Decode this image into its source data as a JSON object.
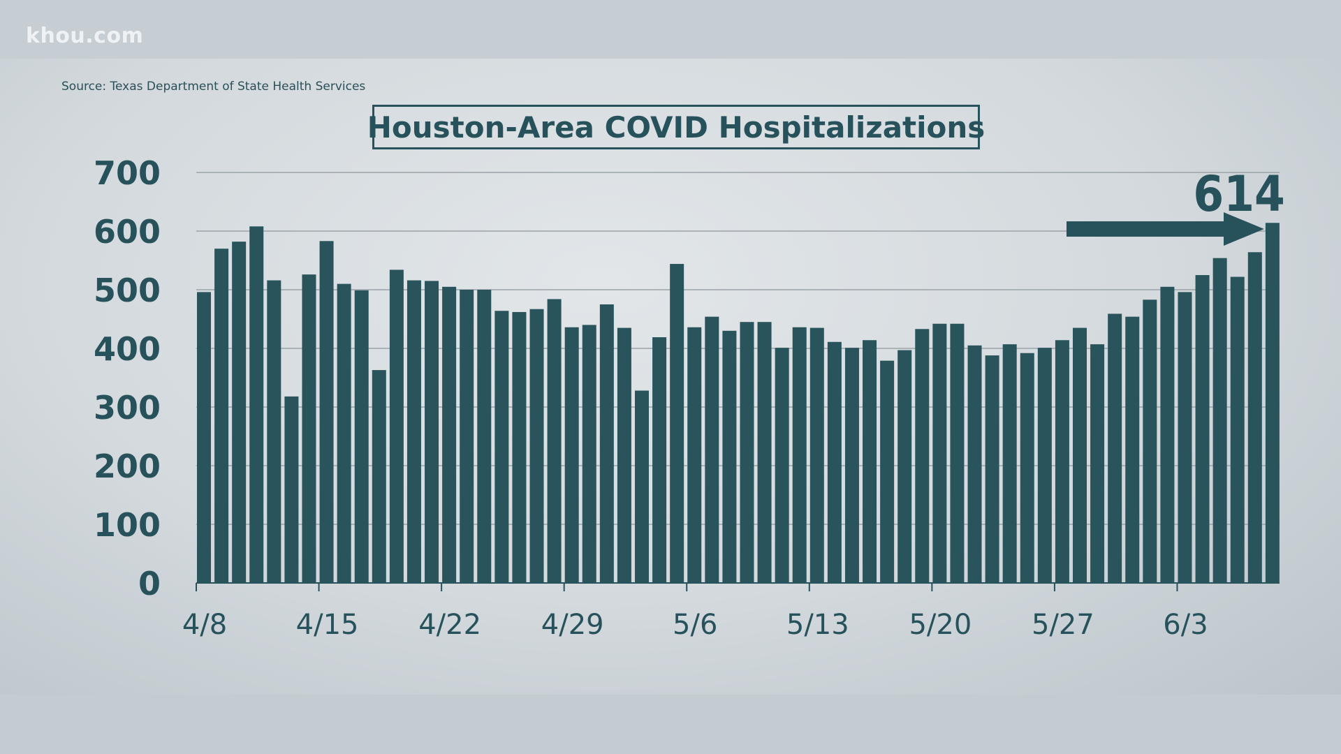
{
  "brand": "khou.com",
  "source": "Source: Texas Department of State Health Services",
  "chart_data": {
    "type": "bar",
    "title": "Houston-Area COVID Hospitalizations",
    "xlabel": "",
    "ylabel": "",
    "ylim": [
      0,
      700
    ],
    "yticks": [
      "0",
      "100",
      "200",
      "300",
      "400",
      "500",
      "600",
      "700"
    ],
    "xtick_labels": [
      "4/8",
      "4/15",
      "4/22",
      "4/29",
      "5/6",
      "5/13",
      "5/20",
      "5/27",
      "6/3"
    ],
    "grid": true,
    "bar_color": "#2a545c",
    "start_date": "4/8",
    "end_date": "6/8",
    "values": [
      496,
      570,
      582,
      608,
      516,
      318,
      526,
      583,
      510,
      499,
      363,
      534,
      516,
      515,
      505,
      500,
      500,
      464,
      462,
      467,
      484,
      436,
      440,
      475,
      435,
      328,
      419,
      544,
      436,
      454,
      430,
      445,
      445,
      401,
      436,
      435,
      411,
      401,
      414,
      379,
      397,
      433,
      442,
      442,
      405,
      388,
      407,
      392,
      401,
      414,
      435,
      407,
      459,
      454,
      483,
      505,
      496,
      525,
      554,
      522,
      564,
      614
    ],
    "annotation": {
      "label": "614",
      "arrow": "right",
      "points_to": "last bar"
    }
  }
}
